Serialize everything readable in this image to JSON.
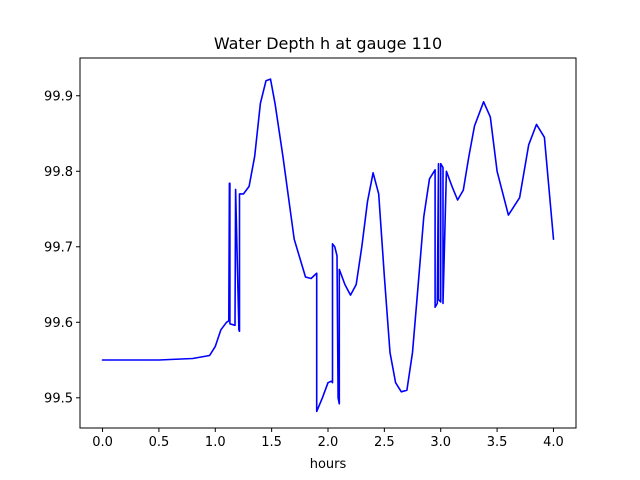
{
  "chart_data": {
    "type": "line",
    "title": "Water Depth h at gauge 110",
    "xlabel": "hours",
    "ylabel": "",
    "xlim": [
      -0.2,
      4.2
    ],
    "ylim": [
      99.46,
      99.95
    ],
    "grid": false,
    "legend": "none",
    "xticks": [
      0.0,
      0.5,
      1.0,
      1.5,
      2.0,
      2.5,
      3.0,
      3.5,
      4.0
    ],
    "xtick_labels": [
      "0.0",
      "0.5",
      "1.0",
      "1.5",
      "2.0",
      "2.5",
      "3.0",
      "3.5",
      "4.0"
    ],
    "yticks": [
      99.5,
      99.6,
      99.7,
      99.8,
      99.9
    ],
    "ytick_labels": [
      "99.5",
      "99.6",
      "99.7",
      "99.8",
      "99.9"
    ],
    "series": [
      {
        "color": "#0000ff",
        "x": [
          0.0,
          0.5,
          0.8,
          0.95,
          1.0,
          1.05,
          1.1,
          1.12,
          1.125,
          1.13,
          1.13,
          1.175,
          1.18,
          1.18,
          1.21,
          1.215,
          1.215,
          1.25,
          1.3,
          1.35,
          1.4,
          1.45,
          1.49,
          1.53,
          1.6,
          1.7,
          1.8,
          1.85,
          1.9,
          1.9,
          1.95,
          2.0,
          2.03,
          2.04,
          2.04,
          2.06,
          2.08,
          2.09,
          2.1,
          2.1,
          2.15,
          2.2,
          2.25,
          2.3,
          2.35,
          2.4,
          2.45,
          2.5,
          2.55,
          2.6,
          2.65,
          2.7,
          2.75,
          2.8,
          2.85,
          2.9,
          2.95,
          2.95,
          2.97,
          2.98,
          2.98,
          3.0,
          3.0,
          3.02,
          3.02,
          3.05,
          3.1,
          3.15,
          3.2,
          3.25,
          3.3,
          3.38,
          3.44,
          3.5,
          3.6,
          3.7,
          3.78,
          3.85,
          3.92,
          4.0
        ],
        "y": [
          99.55,
          99.55,
          99.552,
          99.556,
          99.568,
          99.59,
          99.6,
          99.602,
          99.784,
          99.784,
          99.598,
          99.596,
          99.776,
          99.776,
          99.59,
          99.588,
          99.77,
          99.77,
          99.78,
          99.82,
          99.89,
          99.92,
          99.922,
          99.89,
          99.82,
          99.71,
          99.66,
          99.658,
          99.665,
          99.482,
          99.5,
          99.52,
          99.522,
          99.52,
          99.704,
          99.7,
          99.688,
          99.5,
          99.492,
          99.67,
          99.65,
          99.636,
          99.65,
          99.7,
          99.76,
          99.798,
          99.77,
          99.66,
          99.56,
          99.52,
          99.508,
          99.51,
          99.56,
          99.65,
          99.74,
          99.79,
          99.802,
          99.62,
          99.625,
          99.81,
          99.63,
          99.627,
          99.81,
          99.805,
          99.625,
          99.8,
          99.78,
          99.762,
          99.775,
          99.82,
          99.86,
          99.892,
          99.872,
          99.8,
          99.742,
          99.765,
          99.835,
          99.862,
          99.845,
          99.71
        ]
      }
    ]
  }
}
